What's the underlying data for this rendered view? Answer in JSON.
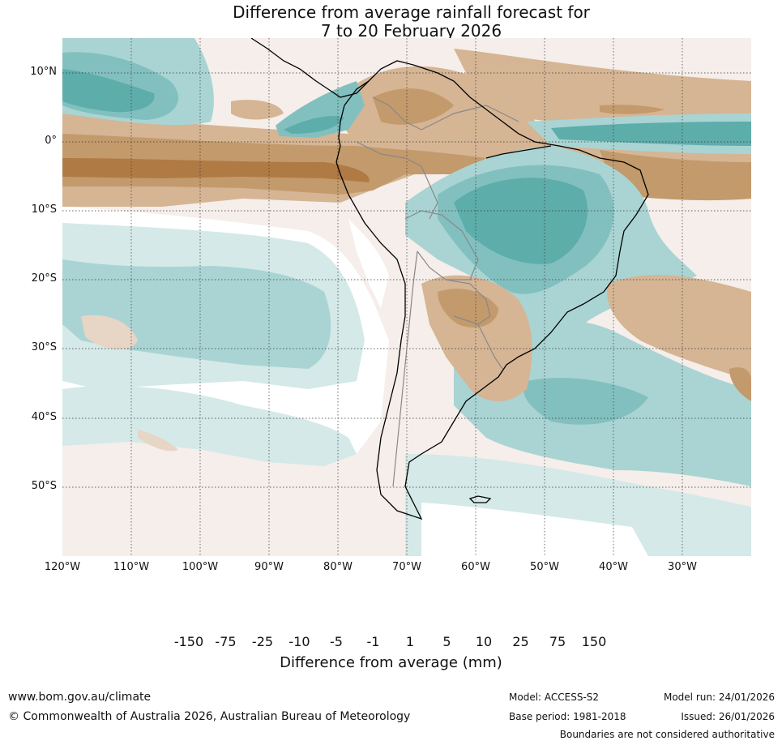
{
  "title": {
    "line1": "Difference from average rainfall forecast for",
    "line2": "7 to 20 February 2026"
  },
  "map": {
    "lat_labels": [
      "10°N",
      "0°",
      "10°S",
      "20°S",
      "30°S",
      "40°S",
      "50°S"
    ],
    "lon_labels": [
      "120°W",
      "110°W",
      "100°W",
      "90°W",
      "80°W",
      "70°W",
      "60°W",
      "50°W",
      "40°W",
      "30°W"
    ],
    "extent": {
      "lon_min": -120,
      "lon_max": -20,
      "lat_min": -60,
      "lat_max": 15
    }
  },
  "colorbar": {
    "ticks": [
      "-150",
      "-75",
      "-25",
      "-10",
      "-5",
      "-1",
      "1",
      "5",
      "10",
      "25",
      "75",
      "150"
    ],
    "colors": [
      "#9f6a3a",
      "#b07a44",
      "#c39a6c",
      "#d5b594",
      "#e7d5c6",
      "#f5eeea",
      "#ffffff",
      "#d4e9e8",
      "#a9d4d3",
      "#82c0bf",
      "#5dadab",
      "#3a9b98",
      "#2a7f7c"
    ],
    "label": "Difference from average (mm)"
  },
  "footer": {
    "website": "www.bom.gov.au/climate",
    "copyright": "© Commonwealth of Australia 2026, Australian Bureau of Meteorology",
    "model": "Model: ACCESS-S2",
    "base_period": "Base period: 1981-2018",
    "model_run": "Model run: 24/01/2026",
    "issued": "Issued: 26/01/2026",
    "boundaries_note": "Boundaries are not considered authoritative"
  }
}
